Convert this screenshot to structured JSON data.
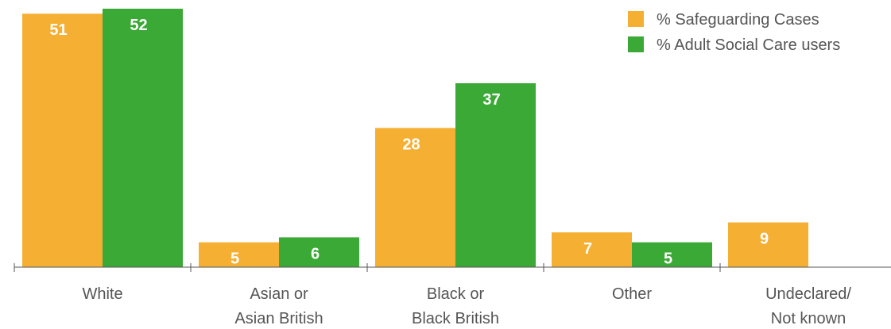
{
  "chart_data": {
    "type": "bar",
    "title": "",
    "xlabel": "",
    "ylabel": "",
    "ylim": [
      0,
      52
    ],
    "grid": false,
    "legend_placement": "top-right",
    "categories": [
      [
        "White"
      ],
      [
        "Asian or",
        "Asian British"
      ],
      [
        "Black or",
        "Black British"
      ],
      [
        "Other"
      ],
      [
        "Undeclared/",
        "Not known"
      ]
    ],
    "series": [
      {
        "name": "% Safeguarding Cases",
        "color": "#F5AF33",
        "values": [
          51,
          5,
          28,
          7,
          9
        ]
      },
      {
        "name": "% Adult Social Care users",
        "color": "#3BA935",
        "values": [
          52,
          6,
          37,
          5,
          null
        ]
      }
    ]
  }
}
